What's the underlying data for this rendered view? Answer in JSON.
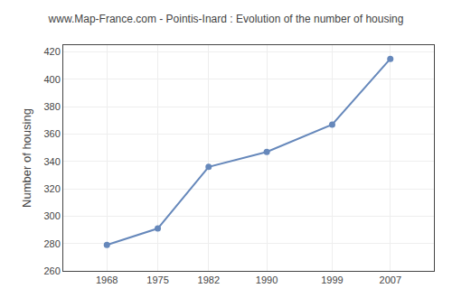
{
  "chart_data": {
    "type": "line",
    "title": "www.Map-France.com - Pointis-Inard : Evolution of the number of housing",
    "ylabel": "Number of housing",
    "x": [
      1968,
      1975,
      1982,
      1990,
      1999,
      2007
    ],
    "values": [
      279,
      291,
      336,
      347,
      367,
      415
    ],
    "xlim": [
      1962,
      2013
    ],
    "ylim": [
      260,
      425
    ],
    "xticks": [
      1968,
      1975,
      1982,
      1990,
      1999,
      2007
    ],
    "yticks": [
      260,
      280,
      300,
      320,
      340,
      360,
      380,
      400,
      420
    ],
    "grid": true,
    "color": "#6688bb",
    "marker": "circle"
  }
}
